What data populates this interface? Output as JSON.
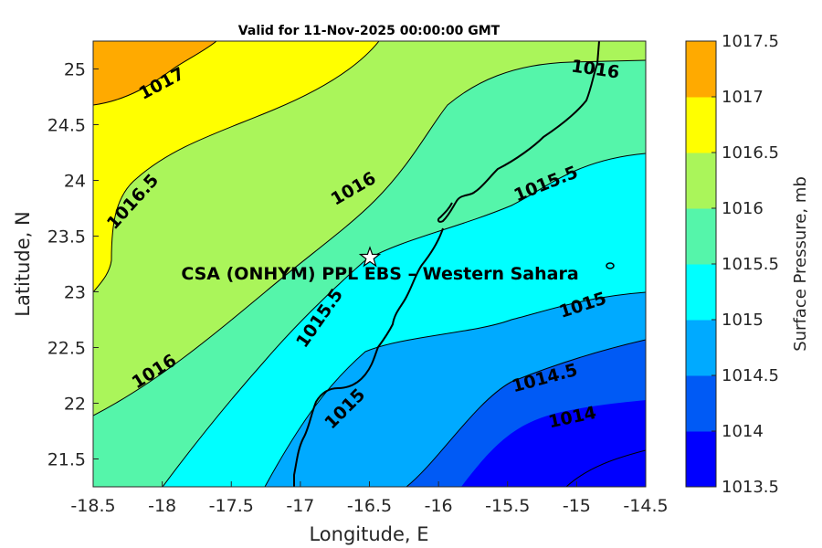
{
  "chart_data": {
    "type": "contour",
    "title": "Valid for 11-Nov-2025 00:00:00 GMT",
    "xlabel": "Longitude, E",
    "ylabel": "Latitude, N",
    "xlim": [
      -18.5,
      -14.5
    ],
    "ylim": [
      21.25,
      25.25
    ],
    "xticks": [
      "-18.5",
      "-18",
      "-17.5",
      "-17",
      "-16.5",
      "-16",
      "-15.5",
      "-15",
      "-14.5"
    ],
    "yticks": [
      "21.5",
      "22",
      "22.5",
      "23",
      "23.5",
      "24",
      "24.5",
      "25"
    ],
    "colorbar": {
      "label": "Surface Pressure, mb",
      "ticks": [
        "1013.5",
        "1014",
        "1014.5",
        "1015",
        "1015.5",
        "1016",
        "1016.5",
        "1017",
        "1017.5"
      ],
      "levels": [
        1013.5,
        1014,
        1014.5,
        1015,
        1015.5,
        1016,
        1016.5,
        1017,
        1017.5
      ],
      "colors": [
        "#0000ff",
        "#005af5",
        "#00aaff",
        "#00ffff",
        "#55f5aa",
        "#aaf55a",
        "#ffff00",
        "#ffaa00",
        "#ff5500"
      ]
    },
    "contour_labels": [
      "1017",
      "1016.5",
      "1016",
      "1016",
      "1016",
      "1015.5",
      "1015.5",
      "1015",
      "1015",
      "1014.5",
      "1014"
    ],
    "site": {
      "label": "CSA (ONHYM) PPL EBS – Western Sahara",
      "lon": -16.5,
      "lat": 23.3
    },
    "grid": false
  }
}
